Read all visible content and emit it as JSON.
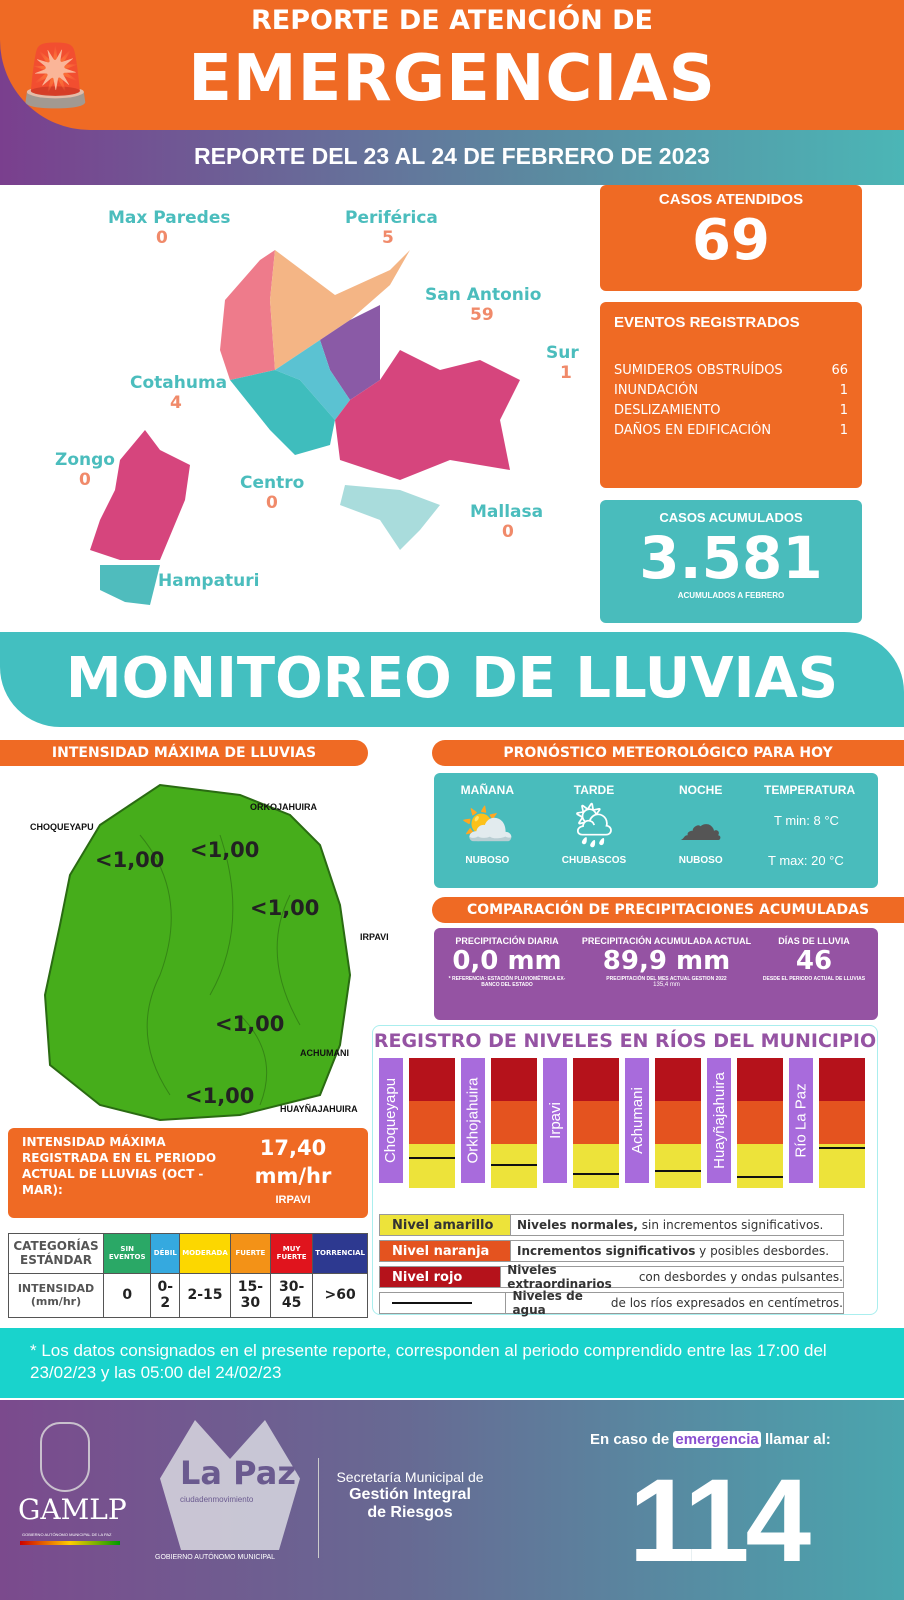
{
  "header": {
    "title_line1": "REPORTE DE ATENCIÓN DE",
    "title_line2": "EMERGENCIAS",
    "subtitle": "REPORTE DEL 23 AL 24 DE FEBRERO DE 2023"
  },
  "map": {
    "districts": [
      {
        "name": "Max Paredes",
        "value": "0"
      },
      {
        "name": "Periférica",
        "value": "5"
      },
      {
        "name": "San Antonio",
        "value": "59"
      },
      {
        "name": "Sur",
        "value": "1"
      },
      {
        "name": "Cotahuma",
        "value": "4"
      },
      {
        "name": "Zongo",
        "value": "0"
      },
      {
        "name": "Centro",
        "value": "0"
      },
      {
        "name": "Mallasa",
        "value": "0"
      },
      {
        "name": "Hampaturi",
        "value": ""
      }
    ],
    "colors": {
      "max_paredes": "#ee7b8b",
      "periferica": "#f4b585",
      "san_antonio": "#8a5aa6",
      "sur": "#d6457d",
      "cotahuma": "#3fbdbd",
      "centro": "#5bc2d2",
      "mallasa": "#a9dcdc",
      "zongo": "#d6457d",
      "hampaturi": "#4fbcbd"
    }
  },
  "cases": {
    "label": "CASOS ATENDIDOS",
    "value": "69"
  },
  "events": {
    "label": "EVENTOS REGISTRADOS",
    "items": [
      {
        "name": "SUMIDEROS OBSTRUÍDOS",
        "value": "66"
      },
      {
        "name": "INUNDACIÓN",
        "value": "1"
      },
      {
        "name": "DESLIZAMIENTO",
        "value": "1"
      },
      {
        "name": "DAÑOS EN EDIFICACIÓN",
        "value": "1"
      }
    ]
  },
  "accumulated": {
    "label": "CASOS ACUMULADOS",
    "value": "3.581",
    "note": "ACUMULADOS  A FEBRERO"
  },
  "monitoring": {
    "title": "MONITOREO DE LLUVIAS"
  },
  "intensity": {
    "title": "INTENSIDAD MÁXIMA  DE LLUVIAS",
    "stations": [
      {
        "name": "CHOQUEYAPU",
        "value": "<1,00"
      },
      {
        "name": "ORKOJAHUIRA",
        "value": "<1,00"
      },
      {
        "name": "IRPAVI",
        "value": "<1,00"
      },
      {
        "name": "ACHUMANI",
        "value": "<1,00"
      },
      {
        "name": "HUAYÑAJAHUIRA",
        "value": "<1,00"
      }
    ],
    "max_label": "INTENSIDAD MÁXIMA REGISTRADA EN EL PERIODO ACTUAL DE LLUVIAS (OCT - MAR):",
    "max_value": "17,40",
    "max_unit": "mm/hr",
    "max_station": "IRPAVI"
  },
  "categories": {
    "header1": "CATEGORÍAS ESTÁNDAR",
    "header2": "INTENSIDAD (mm/hr)",
    "items": [
      {
        "name": "SIN EVENTOS",
        "range": "0",
        "color": "#2aa866"
      },
      {
        "name": "DÉBIL",
        "range": "0-2",
        "color": "#35a9df"
      },
      {
        "name": "MODERADA",
        "range": "2-15",
        "color": "#fcd700"
      },
      {
        "name": "FUERTE",
        "range": "15-30",
        "color": "#f39217"
      },
      {
        "name": "MUY FUERTE",
        "range": "30-45",
        "color": "#e0141d"
      },
      {
        "name": "TORRENCIAL",
        "range": ">60",
        "color": "#2d3990"
      }
    ]
  },
  "forecast": {
    "title": "PRONÓSTICO METEOROLÓGICO PARA HOY",
    "periods": [
      {
        "name": "MAÑANA",
        "state": "NUBOSO",
        "icon": "sun-cloud-icon"
      },
      {
        "name": "TARDE",
        "state": "CHUBASCOS",
        "icon": "sun-rain-cloud-icon"
      },
      {
        "name": "NOCHE",
        "state": "NUBOSO",
        "icon": "dark-cloud-icon"
      }
    ],
    "temp_label": "TEMPERATURA",
    "tmin": "T min:  8 °C",
    "tmax": "T max: 20 °C"
  },
  "precip": {
    "title": "COMPARACIÓN DE PRECIPITACIONES ACUMULADAS",
    "daily": {
      "label": "PRECIPITACIÓN DIARIA",
      "value": "0,0 mm",
      "note": "* REFERENCIA: ESTACIÓN PLUVIOMÉTRICA EX-BANCO DEL ESTADO"
    },
    "accum": {
      "label": "PRECIPITACIÓN ACUMULADA ACTUAL",
      "value": "89,9 mm",
      "note": "PRECIPITACIÓN DEL MES ACTUAL GESTION 2022",
      "note2": "135,4 mm"
    },
    "days": {
      "label": "DÍAS DE LLUVIA",
      "value": "46",
      "note": "DESDE EL PERIODO ACTUAL DE LLUVIAS"
    }
  },
  "rivers": {
    "title": "REGISTRO DE NIVELES EN RÍOS DEL MUNICIPIO",
    "items": [
      {
        "name": "Choqueyapu",
        "level": 0.22
      },
      {
        "name": "Orkhojahuira",
        "level": 0.17
      },
      {
        "name": "Irpavi",
        "level": 0.1
      },
      {
        "name": "Achumani",
        "level": 0.12
      },
      {
        "name": "Huayñajahuira",
        "level": 0.08
      },
      {
        "name": "Río La Paz",
        "level": 0.3
      }
    ],
    "legend": [
      {
        "tag": "Nivel amarillo",
        "bold": "Niveles normales,",
        "text": " sin incrementos significativos.",
        "color": "#ede33a"
      },
      {
        "tag": "Nivel naranja",
        "bold": "Incrementos significativos",
        "text": " y posibles desbordes.",
        "color": "#e4531f"
      },
      {
        "tag": "Nivel rojo",
        "bold": "Niveles extraordinarios",
        "text": " con desbordes y ondas pulsantes.",
        "color": "#b5121b"
      },
      {
        "tag": "",
        "bold": "Niveles de agua",
        "text": " de los ríos expresados en centímetros.",
        "color": "#ffffff"
      }
    ]
  },
  "note": "* Los datos consignados en el presente reporte, corresponden al periodo comprendido entre las 17:00 del 23/02/23 y las 05:00 del 24/02/23",
  "footer": {
    "gamlp": "GAMLP",
    "gamlp_sub": "GOBIERNO AUTÓNOMO MUNICIPAL DE LA PAZ",
    "lapaz": "La Paz",
    "lapaz_sub": "ciudadenmovimiento",
    "gob": "GOBIERNO AUTÓNOMO MUNICIPAL",
    "sec1": "Secretaría Municipal de",
    "sec2": "Gestión Integral",
    "sec3": "de Riesgos",
    "call_pre": "En caso de",
    "call_hl": "emergencia",
    "call_post": "llamar al:",
    "phone": "114"
  }
}
